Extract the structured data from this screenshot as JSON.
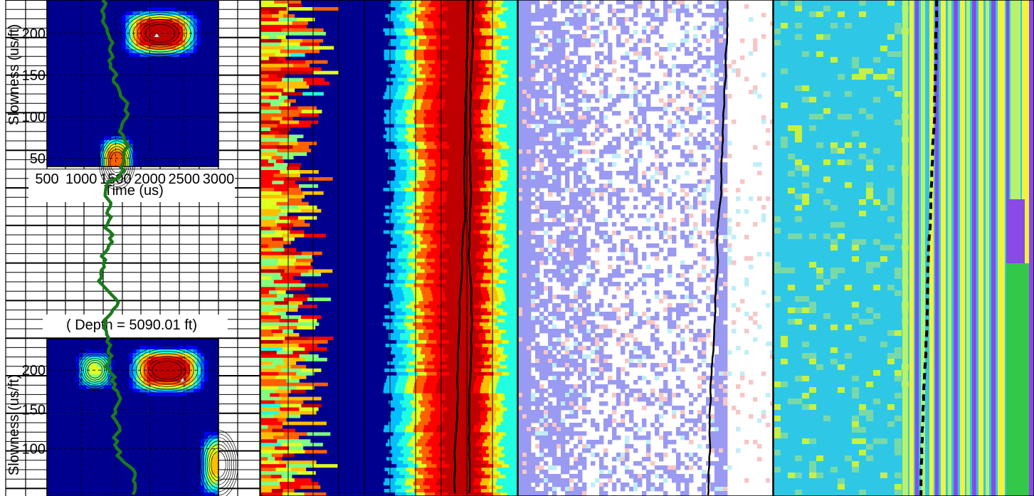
{
  "chart_data": [
    {
      "type": "heatmap",
      "panel": "track-1-upper-stc-map",
      "xlabel": "Time (us)",
      "ylabel": "Slowness (us/ft)",
      "x_ticks": [
        "500",
        "1000",
        "1500",
        "2000",
        "2500",
        "3000"
      ],
      "y_ticks": [
        "200",
        "150",
        "100",
        "50"
      ],
      "xlim": [
        500,
        3000
      ],
      "ylim": [
        40,
        240
      ],
      "peaks": [
        {
          "time": 2150,
          "slowness": 200,
          "level": 1.0,
          "width_t": 520,
          "width_s": 26
        },
        {
          "time": 1520,
          "slowness": 45,
          "level": 0.8,
          "width_t": 240,
          "width_s": 30
        }
      ],
      "marker": {
        "time": 2100,
        "slowness": 197
      }
    },
    {
      "type": "heatmap",
      "panel": "track-1-lower-stc-map",
      "title": "( Depth = 5090.01 ft)",
      "ylabel": "Slowness (us/ft)",
      "y_ticks": [
        "200",
        "150",
        "100"
      ],
      "xlim": [
        500,
        3000
      ],
      "ylim": [
        40,
        240
      ],
      "peaks": [
        {
          "time": 2250,
          "slowness": 200,
          "level": 1.0,
          "width_t": 520,
          "width_s": 28
        },
        {
          "time": 1200,
          "slowness": 200,
          "level": 0.55,
          "width_t": 260,
          "width_s": 24
        },
        {
          "time": 3000,
          "slowness": 80,
          "level": 0.65,
          "width_t": 260,
          "width_s": 40
        }
      ],
      "marker": {
        "time": 2480,
        "slowness": 187
      }
    },
    {
      "type": "line",
      "panel": "track-1-green-curve",
      "color": "#1a7a1a"
    },
    {
      "type": "heatmap",
      "panel": "track-2-projection",
      "colormap": "jet"
    },
    {
      "type": "heatmap",
      "panel": "track-3-coherence",
      "colors": [
        "#ffffff",
        "#9a9af2",
        "#f7c6c6",
        "#bfeef7"
      ]
    },
    {
      "type": "heatmap",
      "panel": "track-4-log-curves",
      "colors": [
        "#2ec8e6",
        "#b6f26a",
        "#f2f23a",
        "#8a4ae6",
        "#33c84a"
      ]
    }
  ]
}
